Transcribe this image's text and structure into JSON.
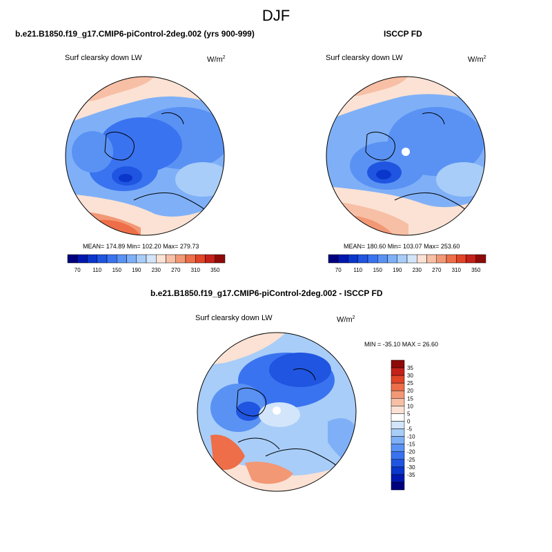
{
  "season": "DJF",
  "panels": [
    {
      "id": "model",
      "case_title": "b.e21.B1850.f19_g17.CMIP6-piControl-2deg.002 (yrs 900-999)",
      "variable": "Surf clearsky down LW",
      "units": "W/m",
      "units_sup": "2",
      "stats": "MEAN= 174.89  Min= 102.20  Max= 279.73"
    },
    {
      "id": "obs",
      "case_title": "ISCCP FD",
      "variable": "Surf clearsky down LW",
      "units": "W/m",
      "units_sup": "2",
      "stats": "MEAN= 180.60  Min= 103.07  Max= 253.60"
    },
    {
      "id": "diff",
      "case_title": "b.e21.B1850.f19_g17.CMIP6-piControl-2deg.002 - ISCCP FD",
      "variable": "Surf clearsky down LW",
      "units": "W/m",
      "units_sup": "2",
      "stats": "MIN = -35.10 MAX =  26.60"
    }
  ],
  "abs_colorbar": {
    "colors": [
      "#00007f",
      "#0018b0",
      "#0a36cc",
      "#1f55e0",
      "#3a73f0",
      "#5a92f4",
      "#7fb0f7",
      "#a8cdf8",
      "#d2e5fa",
      "#fbe2d4",
      "#f7bfa5",
      "#f29875",
      "#ed6e48",
      "#e14427",
      "#c4211a",
      "#8e0a0a"
    ],
    "tick_labels": [
      "70",
      "110",
      "150",
      "190",
      "230",
      "270",
      "310",
      "350"
    ]
  },
  "diff_colorbar": {
    "colors": [
      "#8e0a0a",
      "#c4211a",
      "#e14427",
      "#ed6e48",
      "#f29875",
      "#f7bfa5",
      "#fbe2d4",
      "#ffffff",
      "#d2e5fa",
      "#a8cdf8",
      "#7fb0f7",
      "#5a92f4",
      "#3a73f0",
      "#1f55e0",
      "#0a36cc",
      "#0018b0",
      "#00007f"
    ],
    "tick_labels": [
      "35",
      "30",
      "25",
      "20",
      "15",
      "10",
      "5",
      "0",
      "-5",
      "-10",
      "-15",
      "-20",
      "-25",
      "-30",
      "-35"
    ]
  }
}
